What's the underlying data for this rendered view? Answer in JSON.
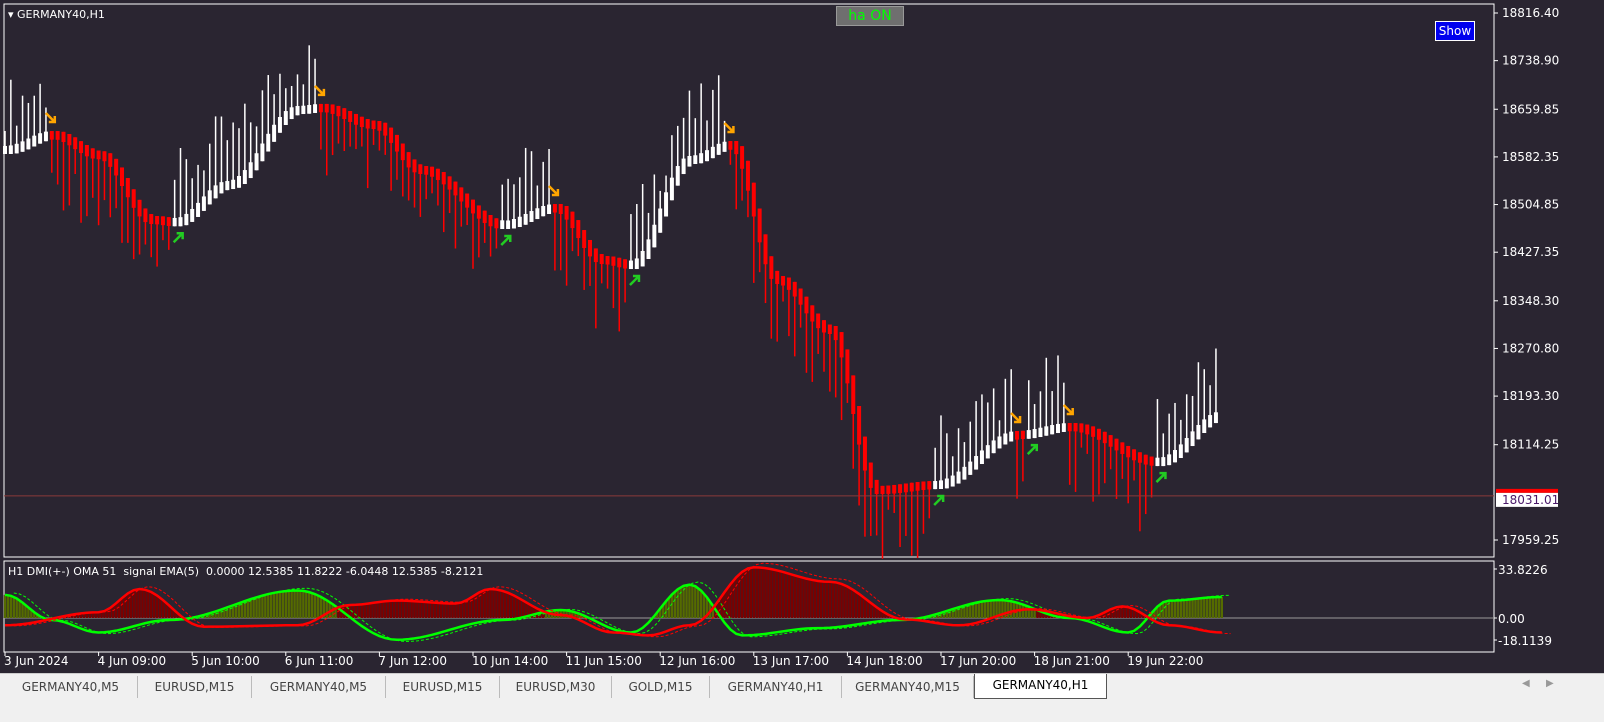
{
  "window": {
    "title": "GERMANY40,H1"
  },
  "buttons": {
    "ha_toggle": "ha ON",
    "show": "Show"
  },
  "colors": {
    "background": "#2a2531",
    "bull": "#ffffff",
    "bear": "#ff0000",
    "arrow_up": "#22cc22",
    "arrow_down": "#ffa500",
    "dmi_plus": "#00ff00",
    "dmi_minus": "#ff0000",
    "hist_plus": "#556b00",
    "hist_minus": "#7a0000"
  },
  "price_axis": {
    "ticks": [
      "18816.40",
      "18738.90",
      "18659.85",
      "18582.35",
      "18504.85",
      "18427.35",
      "18348.30",
      "18270.80",
      "18193.30",
      "18114.25",
      "17959.25"
    ],
    "current_price": "18031.01"
  },
  "indicator": {
    "label": "H1 DMI(+-) OMA 51  signal EMA(5)  0.0000 12.5385 11.8222 -6.0448 12.5385 -8.2121",
    "ticks": [
      "33.8226",
      "0.00",
      "-18.1139"
    ]
  },
  "time_axis": {
    "labels": [
      "3 Jun 2024",
      "4 Jun 09:00",
      "5 Jun 10:00",
      "6 Jun 11:00",
      "7 Jun 12:00",
      "10 Jun 14:00",
      "11 Jun 15:00",
      "12 Jun 16:00",
      "13 Jun 17:00",
      "14 Jun 18:00",
      "17 Jun 20:00",
      "18 Jun 21:00",
      "19 Jun 22:00"
    ]
  },
  "tabs": [
    {
      "label": "GERMANY40,M5"
    },
    {
      "label": "EURUSD,M15"
    },
    {
      "label": "GERMANY40,M5"
    },
    {
      "label": "EURUSD,M15"
    },
    {
      "label": "EURUSD,M30"
    },
    {
      "label": "GOLD,M15"
    },
    {
      "label": "GERMANY40,H1"
    },
    {
      "label": "GERMANY40,M15"
    },
    {
      "label": "GERMANY40,H1",
      "active": true
    }
  ],
  "chart_data": {
    "type": "candlestick",
    "symbol": "GERMANY40,H1",
    "ylim": [
      17959.25,
      18816.4
    ],
    "bars": 208,
    "ha_price_path": [
      [
        0,
        18593.6
      ],
      [
        8,
        18617.9
      ],
      [
        16,
        18585
      ],
      [
        25,
        18479.7
      ],
      [
        29,
        18476
      ],
      [
        38,
        18536.6
      ],
      [
        50,
        18658.6
      ],
      [
        54,
        18662
      ],
      [
        63,
        18634.2
      ],
      [
        71,
        18561
      ],
      [
        85,
        18471.6
      ],
      [
        94,
        18499.2
      ],
      [
        102,
        18414.6
      ],
      [
        107,
        18406.5
      ],
      [
        117,
        18577.3
      ],
      [
        124,
        18601.7
      ],
      [
        132,
        18382.1
      ],
      [
        141,
        18300.8
      ],
      [
        149,
        18040.6
      ],
      [
        159,
        18048.7
      ],
      [
        173,
        18130
      ],
      [
        182,
        18143
      ],
      [
        197,
        18086
      ],
      [
        208,
        18162
      ]
    ],
    "trend_segments": [
      [
        0,
        8,
        "bull"
      ],
      [
        8,
        29,
        "bear"
      ],
      [
        29,
        54,
        "bull"
      ],
      [
        54,
        85,
        "bear"
      ],
      [
        85,
        94,
        "bull"
      ],
      [
        94,
        107,
        "bear"
      ],
      [
        107,
        124,
        "bull"
      ],
      [
        124,
        159,
        "bear"
      ],
      [
        159,
        173,
        "bull"
      ],
      [
        173,
        175,
        "bear"
      ],
      [
        175,
        182,
        "bull"
      ],
      [
        182,
        197,
        "bear"
      ],
      [
        197,
        208,
        "bull"
      ]
    ],
    "signals_down": [
      8,
      54,
      94,
      124,
      173,
      182
    ],
    "signals_up": [
      29,
      85,
      107,
      159,
      175,
      197
    ],
    "indicator_ylim": [
      -18.1139,
      33.8226
    ],
    "dmi_plus": [
      [
        0,
        16
      ],
      [
        8,
        -1.4
      ],
      [
        16,
        -10
      ],
      [
        28,
        -1.4
      ],
      [
        50,
        19
      ],
      [
        67,
        -15
      ],
      [
        85,
        -1.4
      ],
      [
        95,
        5.5
      ],
      [
        107,
        -10
      ],
      [
        117,
        23
      ],
      [
        126,
        -12
      ],
      [
        139,
        -7
      ],
      [
        153,
        -1.4
      ],
      [
        170,
        12.4
      ],
      [
        182,
        0
      ],
      [
        192,
        -10
      ],
      [
        199,
        12
      ],
      [
        208,
        14.5
      ]
    ],
    "dmi_minus": [
      [
        0,
        -5
      ],
      [
        16,
        4
      ],
      [
        23,
        20
      ],
      [
        34,
        -6
      ],
      [
        50,
        -5
      ],
      [
        59,
        9
      ],
      [
        67,
        12
      ],
      [
        77,
        10
      ],
      [
        83,
        20
      ],
      [
        95,
        2
      ],
      [
        104,
        -10
      ],
      [
        110,
        -12
      ],
      [
        117,
        -5
      ],
      [
        128,
        35
      ],
      [
        141,
        25
      ],
      [
        154,
        -1
      ],
      [
        163,
        -5
      ],
      [
        175,
        6
      ],
      [
        185,
        0
      ],
      [
        191,
        8
      ],
      [
        199,
        -5
      ],
      [
        208,
        -10
      ]
    ]
  }
}
